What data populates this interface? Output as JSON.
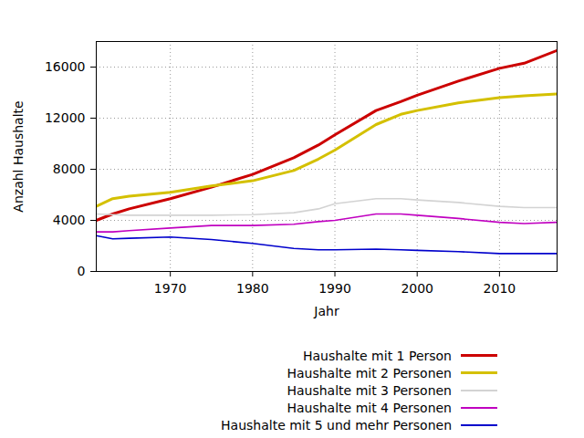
{
  "chart_data": {
    "type": "line",
    "x_label": "Jahr",
    "y_label": "Anzahl Haushalte",
    "x": [
      1961,
      1963,
      1965,
      1970,
      1975,
      1980,
      1985,
      1988,
      1990,
      1995,
      1998,
      2000,
      2005,
      2010,
      2013,
      2017
    ],
    "series": [
      {
        "name": "Haushalte mit 1 Person",
        "color": "#cc0000",
        "values": [
          4000,
          4500,
          4900,
          5700,
          6600,
          7600,
          8900,
          9900,
          10700,
          12600,
          13300,
          13800,
          14900,
          15900,
          16300,
          17300
        ]
      },
      {
        "name": "Haushalte mit 2 Personen",
        "color": "#d4c000",
        "values": [
          5100,
          5700,
          5900,
          6200,
          6700,
          7100,
          7900,
          8800,
          9500,
          11500,
          12300,
          12600,
          13200,
          13600,
          13750,
          13900
        ]
      },
      {
        "name": "Haushalte mit 3 Personen",
        "color": "#d3d3d3",
        "values": [
          4500,
          4450,
          4400,
          4400,
          4400,
          4450,
          4600,
          4900,
          5300,
          5700,
          5700,
          5600,
          5400,
          5100,
          5000,
          5000
        ]
      },
      {
        "name": "Haushalte mit 4 Personen",
        "color": "#c000c0",
        "values": [
          3100,
          3100,
          3200,
          3400,
          3600,
          3600,
          3700,
          3900,
          4000,
          4500,
          4500,
          4400,
          4150,
          3850,
          3750,
          3850
        ]
      },
      {
        "name": "Haushalte mit 5 und mehr Personen",
        "color": "#0000cc",
        "values": [
          2800,
          2550,
          2600,
          2700,
          2500,
          2200,
          1800,
          1700,
          1700,
          1750,
          1700,
          1650,
          1550,
          1400,
          1400,
          1400
        ]
      }
    ],
    "xlim": [
      1961,
      2017
    ],
    "ylim": [
      0,
      18000
    ],
    "xticks": [
      1970,
      1980,
      1990,
      2000,
      2010
    ],
    "yticks": [
      0,
      4000,
      8000,
      12000,
      16000
    ],
    "grid": true,
    "legend": "bottom right"
  }
}
